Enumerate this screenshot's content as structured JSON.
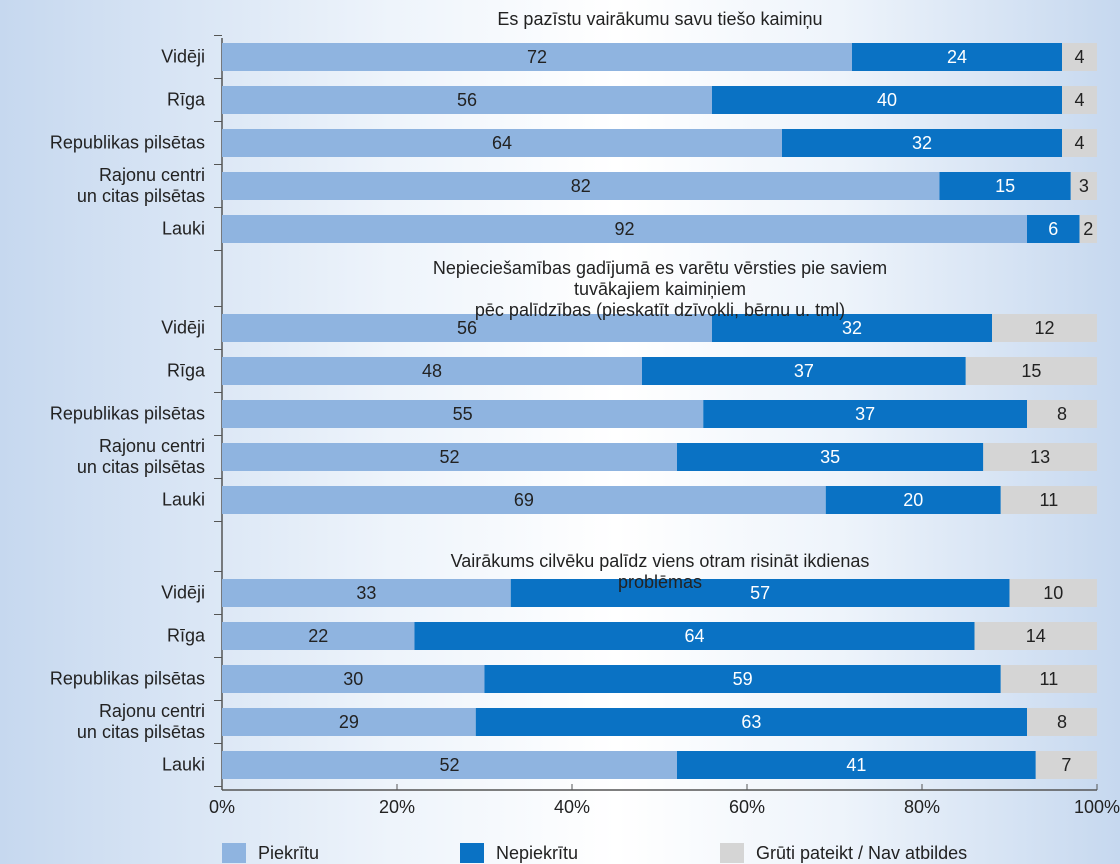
{
  "chart_data": {
    "type": "bar",
    "orientation": "horizontal",
    "stacked": true,
    "legend": "bottom",
    "xlim": [
      0,
      100
    ],
    "xticks": [
      {
        "value": 0,
        "label": "0%"
      },
      {
        "value": 20,
        "label": "20%"
      },
      {
        "value": 40,
        "label": "40%"
      },
      {
        "value": 60,
        "label": "60%"
      },
      {
        "value": 80,
        "label": "80%"
      },
      {
        "value": 100,
        "label": "100%"
      }
    ],
    "series": [
      {
        "name": "Piekrītu",
        "color": "#8fb4e0"
      },
      {
        "name": "Nepiekrītu",
        "color": "#0a72c4"
      },
      {
        "name": "Grūti pateikt / Nav atbildes",
        "color": "#d5d5d5"
      }
    ],
    "panels": [
      {
        "title": "Es pazīstu vairākumu savu tiešo kaimiņu",
        "categories": [
          "Vidēji",
          "Rīga",
          "Republikas pilsētas",
          "Rajonu centri\nun citas pilsētas",
          "Lauki"
        ],
        "values": [
          [
            72,
            56,
            64,
            82,
            92
          ],
          [
            24,
            40,
            32,
            15,
            6
          ],
          [
            4,
            4,
            4,
            3,
            2
          ]
        ]
      },
      {
        "title": "Nepieciešamības gadījumā es varētu vērsties pie saviem tuvākajiem kaimiņiem\npēc palīdzības   (pieskatīt dzīvokli, bērnu u. tml)",
        "categories": [
          "Vidēji",
          "Rīga",
          "Republikas pilsētas",
          "Rajonu centri\nun citas pilsētas",
          "Lauki"
        ],
        "values": [
          [
            56,
            48,
            55,
            52,
            69
          ],
          [
            32,
            37,
            37,
            35,
            20
          ],
          [
            12,
            15,
            8,
            13,
            11
          ]
        ]
      },
      {
        "title": "Vairākums cilvēku palīdz viens otram  risināt ikdienas problēmas",
        "categories": [
          "Vidēji",
          "Rīga",
          "Republikas pilsētas",
          "Rajonu centri\nun citas pilsētas",
          "Lauki"
        ],
        "values": [
          [
            33,
            22,
            30,
            29,
            52
          ],
          [
            57,
            64,
            59,
            63,
            41
          ],
          [
            10,
            14,
            11,
            8,
            7
          ]
        ]
      }
    ]
  }
}
